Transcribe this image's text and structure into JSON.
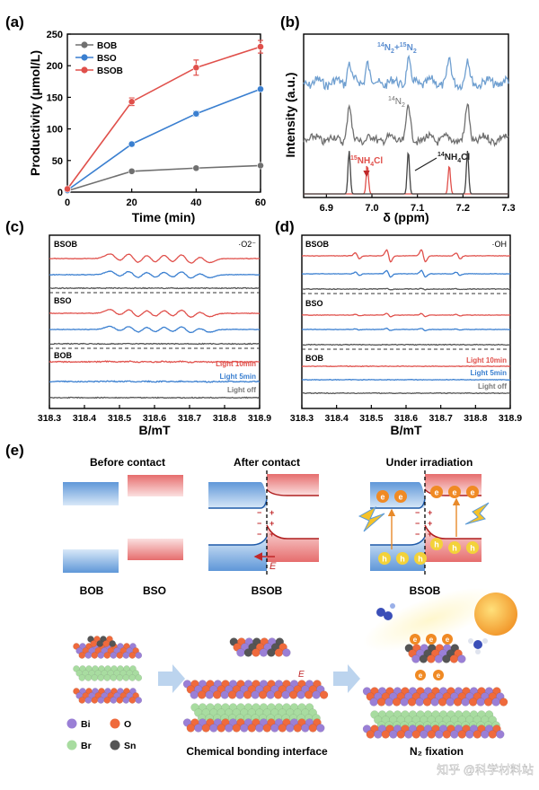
{
  "figure": {
    "panel_labels": [
      "(a)",
      "(b)",
      "(c)",
      "(d)",
      "(e)"
    ],
    "watermark": "知乎 @科学材料站"
  },
  "chart_data": [
    {
      "panel": "(a)",
      "type": "line",
      "xlabel": "Time (min)",
      "ylabel": "Productivity (μmol/L)",
      "x": [
        0,
        20,
        40,
        60
      ],
      "xlim": [
        0,
        60
      ],
      "ylim": [
        0,
        250
      ],
      "xticks": [
        0,
        20,
        40,
        60
      ],
      "yticks": [
        0,
        50,
        100,
        150,
        200,
        250
      ],
      "legend_position": "top-left",
      "series": [
        {
          "name": "BOB",
          "color": "#707070",
          "values": [
            2,
            33,
            38,
            42
          ],
          "err": [
            0,
            2,
            2,
            2
          ]
        },
        {
          "name": "BSO",
          "color": "#3a7fd0",
          "values": [
            3,
            76,
            124,
            163
          ],
          "err": [
            0,
            3,
            4,
            3
          ]
        },
        {
          "name": "BSOB",
          "color": "#e0504b",
          "values": [
            5,
            143,
            197,
            230
          ],
          "err": [
            0,
            6,
            12,
            10
          ]
        }
      ]
    },
    {
      "panel": "(b)",
      "type": "line",
      "xlabel": "δ (ppm)",
      "ylabel": "Intensity (a.u.)",
      "xlim": [
        6.85,
        7.3
      ],
      "xticks": [
        6.9,
        7.0,
        7.1,
        7.2,
        7.3
      ],
      "reversed_x": false,
      "grid": false,
      "series": [
        {
          "name": "14N2+15N2",
          "color": "#6f9fd0",
          "peaks": [
            6.95,
            6.99,
            7.08,
            7.17,
            7.21
          ]
        },
        {
          "name": "14N2",
          "color": "#707070",
          "peaks": [
            6.95,
            7.08,
            7.21
          ]
        },
        {
          "name": "15NH4Cl",
          "color": "#e0504b",
          "peaks": [
            6.99,
            7.17
          ]
        },
        {
          "name": "14NH4Cl",
          "color": "#444444",
          "peaks": [
            6.95,
            7.08,
            7.21
          ]
        }
      ]
    },
    {
      "panel": "(c)",
      "type": "line",
      "species": "·O2⁻",
      "xlabel": "B/mT",
      "xlim": [
        318.3,
        318.9
      ],
      "xticks": [
        318.3,
        318.4,
        318.5,
        318.6,
        318.7,
        318.8,
        318.9
      ],
      "samples": [
        "BSOB",
        "BSO",
        "BOB"
      ],
      "conditions": [
        {
          "name": "Light 10min",
          "color": "#e0504b"
        },
        {
          "name": "Light 5min",
          "color": "#3a7fd0"
        },
        {
          "name": "Light off",
          "color": "#555555"
        }
      ],
      "peak_positions": [
        318.49,
        318.54,
        318.59,
        318.64,
        318.69,
        318.74
      ]
    },
    {
      "panel": "(d)",
      "type": "line",
      "species": "·OH",
      "xlabel": "B/mT",
      "xlim": [
        318.3,
        318.9
      ],
      "xticks": [
        318.3,
        318.4,
        318.5,
        318.6,
        318.7,
        318.8,
        318.9
      ],
      "samples": [
        "BSOB",
        "BSO",
        "BOB"
      ],
      "conditions": [
        {
          "name": "Light 10min",
          "color": "#e0504b"
        },
        {
          "name": "Light 5min",
          "color": "#3a7fd0"
        },
        {
          "name": "Light off",
          "color": "#555555"
        }
      ],
      "peak_positions": [
        318.46,
        318.55,
        318.65,
        318.75
      ]
    }
  ],
  "panel_e": {
    "headers": [
      "Before contact",
      "After contact",
      "Under irradiation"
    ],
    "labels": {
      "bob": "BOB",
      "bso": "BSO",
      "bsob1": "BSOB",
      "bsob2": "BSOB",
      "field": "E",
      "field2": "E"
    },
    "carriers": {
      "electron": "e",
      "hole": "h"
    },
    "legend": [
      {
        "name": "Bi",
        "color": "#9a7fd6"
      },
      {
        "name": "O",
        "color": "#ef6a3c"
      },
      {
        "name": "Br",
        "color": "#a8dca0"
      },
      {
        "name": "Sn",
        "color": "#555555"
      }
    ],
    "captions": [
      "Chemical bonding interface",
      "N₂ fixation"
    ]
  }
}
